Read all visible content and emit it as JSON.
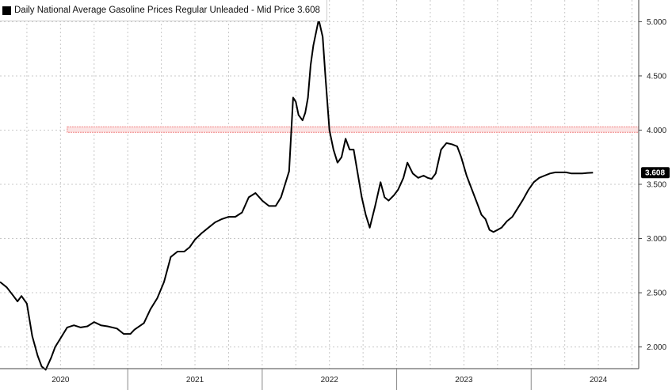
{
  "legend": {
    "label": "Daily National Average Gasoline Prices Regular Unleaded - Mid Price",
    "last_value": "3.608",
    "swatch_color": "#000000"
  },
  "chart_data": {
    "type": "line",
    "title": "",
    "xlabel": "",
    "ylabel": "",
    "xlim": [
      2019.55,
      2024.3
    ],
    "ylim": [
      1.8,
      5.2
    ],
    "grid": true,
    "legend_position": "top-left",
    "x_ticks": [
      {
        "label": "2020",
        "value": 2020.0
      },
      {
        "label": "2021",
        "value": 2021.0
      },
      {
        "label": "2022",
        "value": 2022.0
      },
      {
        "label": "2023",
        "value": 2023.0
      },
      {
        "label": "2024",
        "value": 2024.0
      }
    ],
    "y_ticks": [
      {
        "label": "2.000",
        "value": 2.0
      },
      {
        "label": "2.500",
        "value": 2.5
      },
      {
        "label": "3.000",
        "value": 3.0
      },
      {
        "label": "3.500",
        "value": 3.5
      },
      {
        "label": "4.000",
        "value": 4.0
      },
      {
        "label": "4.500",
        "value": 4.5
      },
      {
        "label": "5.000",
        "value": 5.0
      }
    ],
    "x_gridlines": [
      2019.75,
      2020.0,
      2020.25,
      2020.5,
      2020.75,
      2021.0,
      2021.25,
      2021.5,
      2021.75,
      2022.0,
      2022.25,
      2022.5,
      2022.75,
      2023.0,
      2023.25,
      2023.5,
      2023.75,
      2024.0,
      2024.25
    ],
    "year_separators": [
      2020.5,
      2021.5,
      2022.5,
      2023.5
    ],
    "highlight_band": {
      "x_start": 2020.05,
      "x_end": 2024.3,
      "y_low": 3.98,
      "y_high": 4.03,
      "color": "#f08080"
    },
    "last_value_label": {
      "text": "3.608",
      "value": 3.608
    },
    "series": [
      {
        "name": "Daily National Average Gasoline Prices Regular Unleaded - Mid Price",
        "color": "#000000",
        "x": [
          2019.55,
          2019.6,
          2019.65,
          2019.68,
          2019.71,
          2019.75,
          2019.79,
          2019.83,
          2019.86,
          2019.89,
          2019.93,
          2019.96,
          2020.0,
          2020.05,
          2020.1,
          2020.15,
          2020.2,
          2020.25,
          2020.3,
          2020.35,
          2020.42,
          2020.47,
          2020.52,
          2020.55,
          2020.62,
          2020.67,
          2020.72,
          2020.77,
          2020.82,
          2020.87,
          2020.92,
          2020.96,
          2021.0,
          2021.05,
          2021.1,
          2021.15,
          2021.2,
          2021.25,
          2021.3,
          2021.35,
          2021.4,
          2021.45,
          2021.5,
          2021.55,
          2021.6,
          2021.64,
          2021.67,
          2021.7,
          2021.73,
          2021.75,
          2021.77,
          2021.8,
          2021.82,
          2021.84,
          2021.86,
          2021.88,
          2021.92,
          2021.95,
          2021.97,
          2022.0,
          2022.03,
          2022.06,
          2022.09,
          2022.12,
          2022.15,
          2022.18,
          2022.21,
          2022.24,
          2022.27,
          2022.3,
          2022.34,
          2022.38,
          2022.41,
          2022.44,
          2022.48,
          2022.51,
          2022.55,
          2022.58,
          2022.62,
          2022.66,
          2022.7,
          2022.73,
          2022.76,
          2022.79,
          2022.83,
          2022.87,
          2022.91,
          2022.95,
          2022.98,
          2023.02,
          2023.06,
          2023.1,
          2023.13,
          2023.16,
          2023.19,
          2023.22,
          2023.25,
          2023.28,
          2023.32,
          2023.36,
          2023.4,
          2023.44,
          2023.48,
          2023.52,
          2023.56,
          2023.6,
          2023.64,
          2023.68,
          2023.72,
          2023.76,
          2023.8,
          2023.84,
          2023.88,
          2023.92,
          2023.96
        ],
        "y": [
          2.6,
          2.55,
          2.47,
          2.42,
          2.47,
          2.4,
          2.1,
          1.92,
          1.82,
          1.79,
          1.9,
          2.0,
          2.08,
          2.18,
          2.2,
          2.18,
          2.19,
          2.23,
          2.2,
          2.19,
          2.17,
          2.12,
          2.12,
          2.16,
          2.22,
          2.35,
          2.45,
          2.6,
          2.83,
          2.88,
          2.88,
          2.92,
          2.99,
          3.05,
          3.1,
          3.15,
          3.18,
          3.2,
          3.2,
          3.24,
          3.38,
          3.42,
          3.35,
          3.3,
          3.3,
          3.38,
          3.5,
          3.62,
          4.3,
          4.26,
          4.14,
          4.09,
          4.16,
          4.3,
          4.6,
          4.78,
          5.02,
          4.86,
          4.5,
          4.0,
          3.82,
          3.7,
          3.75,
          3.92,
          3.82,
          3.82,
          3.6,
          3.38,
          3.22,
          3.1,
          3.3,
          3.52,
          3.38,
          3.35,
          3.4,
          3.45,
          3.56,
          3.7,
          3.6,
          3.56,
          3.58,
          3.56,
          3.55,
          3.6,
          3.82,
          3.88,
          3.87,
          3.85,
          3.75,
          3.58,
          3.45,
          3.32,
          3.22,
          3.18,
          3.08,
          3.06,
          3.08,
          3.1,
          3.16,
          3.2,
          3.28,
          3.36,
          3.45,
          3.52,
          3.56,
          3.58,
          3.6,
          3.61,
          3.61,
          3.61,
          3.6,
          3.6,
          3.6,
          3.605,
          3.608
        ]
      }
    ]
  }
}
